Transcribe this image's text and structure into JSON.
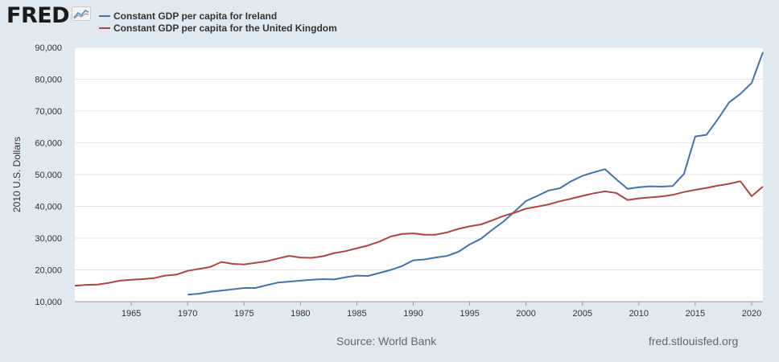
{
  "header": {
    "logo_text": "FRED",
    "logo_icon": "line-chart-icon"
  },
  "legend": [
    {
      "label": "Constant GDP per capita for Ireland",
      "color": "#4572a7"
    },
    {
      "label": "Constant GDP per capita for the United Kingdom",
      "color": "#aa4643"
    }
  ],
  "footer": {
    "source": "Source: World Bank",
    "url": "fred.stlouisfed.org"
  },
  "chart_data": {
    "type": "line",
    "ylabel": "2010 U.S. Dollars",
    "xlim": [
      1960,
      2021
    ],
    "ylim": [
      10000,
      90000
    ],
    "y_ticks": [
      10000,
      20000,
      30000,
      40000,
      50000,
      60000,
      70000,
      80000,
      90000
    ],
    "y_tick_labels": [
      "10,000",
      "20,000",
      "30,000",
      "40,000",
      "50,000",
      "60,000",
      "70,000",
      "80,000",
      "90,000"
    ],
    "x_ticks": [
      1965,
      1970,
      1975,
      1980,
      1985,
      1990,
      1995,
      2000,
      2005,
      2010,
      2015,
      2020
    ],
    "grid": "horizontal",
    "legend_position": "top",
    "series": [
      {
        "name": "Constant GDP per capita for Ireland",
        "color": "#4572a7",
        "x": [
          1970,
          1971,
          1972,
          1973,
          1974,
          1975,
          1976,
          1977,
          1978,
          1979,
          1980,
          1981,
          1982,
          1983,
          1984,
          1985,
          1986,
          1987,
          1988,
          1989,
          1990,
          1991,
          1992,
          1993,
          1994,
          1995,
          1996,
          1997,
          1998,
          1999,
          2000,
          2001,
          2002,
          2003,
          2004,
          2005,
          2006,
          2007,
          2008,
          2009,
          2010,
          2011,
          2012,
          2013,
          2014,
          2015,
          2016,
          2017,
          2018,
          2019,
          2020,
          2021
        ],
        "values": [
          12200,
          12500,
          13100,
          13500,
          13900,
          14300,
          14300,
          15200,
          16000,
          16300,
          16600,
          16900,
          17100,
          17000,
          17700,
          18200,
          18100,
          19000,
          20000,
          21200,
          23000,
          23300,
          23900,
          24400,
          25700,
          28000,
          29800,
          32600,
          35200,
          38400,
          41700,
          43300,
          45000,
          45700,
          47900,
          49600,
          50700,
          51700,
          48500,
          45500,
          46000,
          46300,
          46200,
          46400,
          50200,
          62000,
          62500,
          67400,
          72700,
          75400,
          78800,
          88500
        ]
      },
      {
        "name": "Constant GDP per capita for the United Kingdom",
        "color": "#aa4643",
        "x": [
          1960,
          1961,
          1962,
          1963,
          1964,
          1965,
          1966,
          1967,
          1968,
          1969,
          1970,
          1971,
          1972,
          1973,
          1974,
          1975,
          1976,
          1977,
          1978,
          1979,
          1980,
          1981,
          1982,
          1983,
          1984,
          1985,
          1986,
          1987,
          1988,
          1989,
          1990,
          1991,
          1992,
          1993,
          1994,
          1995,
          1996,
          1997,
          1998,
          1999,
          2000,
          2001,
          2002,
          2003,
          2004,
          2005,
          2006,
          2007,
          2008,
          2009,
          2010,
          2011,
          2012,
          2013,
          2014,
          2015,
          2016,
          2017,
          2018,
          2019,
          2020,
          2021
        ],
        "values": [
          15000,
          15300,
          15400,
          15900,
          16600,
          16900,
          17100,
          17400,
          18200,
          18500,
          19700,
          20300,
          20900,
          22500,
          21900,
          21700,
          22200,
          22700,
          23600,
          24400,
          23900,
          23800,
          24300,
          25300,
          25900,
          26800,
          27700,
          28900,
          30500,
          31300,
          31500,
          31100,
          31100,
          31800,
          32900,
          33700,
          34300,
          35600,
          37000,
          38000,
          39300,
          39900,
          40600,
          41600,
          42400,
          43300,
          44100,
          44700,
          44200,
          42000,
          42500,
          42800,
          43100,
          43600,
          44500,
          45200,
          45800,
          46500,
          47100,
          47900,
          43200,
          46200
        ]
      }
    ]
  }
}
